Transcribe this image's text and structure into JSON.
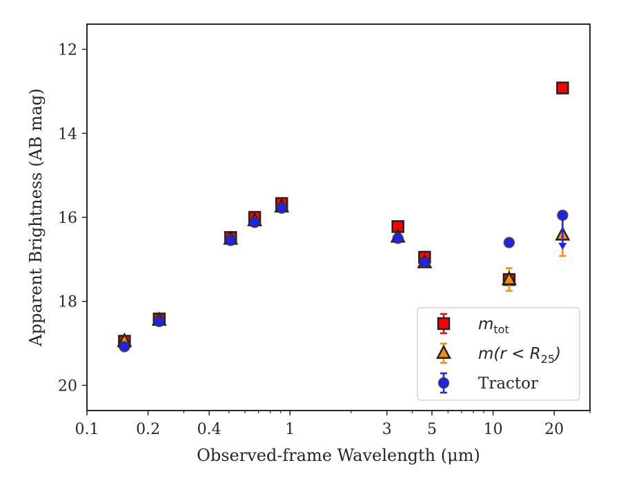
{
  "chart_data": {
    "type": "scatter",
    "xlabel": "Observed-frame Wavelength (μm)",
    "ylabel": "Apparent Brightness (AB mag)",
    "x_scale": "log",
    "xlim": [
      0.1,
      30
    ],
    "ylim": [
      20.6,
      11.4
    ],
    "y_inverted": true,
    "x_ticks": [
      0.1,
      0.2,
      0.4,
      1,
      3,
      5,
      10,
      20
    ],
    "x_tick_labels": [
      "0.1",
      "0.2",
      "0.4",
      "1",
      "3",
      "5",
      "10",
      "20"
    ],
    "y_ticks": [
      12,
      14,
      16,
      18,
      20
    ],
    "y_tick_labels": [
      "12",
      "14",
      "16",
      "18",
      "20"
    ],
    "grid": false,
    "legend_position": "lower-right",
    "series": [
      {
        "name": "m_tot",
        "legend": {
          "base": "m",
          "sub": "tot"
        },
        "marker": "square",
        "color": "#ff0000",
        "edge_color": "#222222",
        "points": [
          {
            "x": 0.153,
            "y": 18.95,
            "err": 0.06
          },
          {
            "x": 0.227,
            "y": 18.42,
            "err": 0.05
          },
          {
            "x": 0.51,
            "y": 16.48,
            "err": 0.06
          },
          {
            "x": 0.67,
            "y": 16.0,
            "err": 0.06
          },
          {
            "x": 0.91,
            "y": 15.67,
            "err": 0.06
          },
          {
            "x": 3.4,
            "y": 16.22,
            "err": 0.04
          },
          {
            "x": 4.6,
            "y": 16.95,
            "err": 0.04
          },
          {
            "x": 12.0,
            "y": 17.48,
            "err": 0.04
          },
          {
            "x": 22.0,
            "y": 12.92,
            "err": 0.04
          }
        ]
      },
      {
        "name": "m(r < R25)",
        "legend": {
          "base": "m(r < R",
          "sub": "25",
          "tail": ")"
        },
        "marker": "triangle",
        "color": "#ff8c00",
        "edge_color": "#222222",
        "points": [
          {
            "x": 0.153,
            "y": 18.95,
            "err": 0.06
          },
          {
            "x": 0.227,
            "y": 18.45,
            "err": 0.05
          },
          {
            "x": 0.51,
            "y": 16.52,
            "err": 0.05
          },
          {
            "x": 0.67,
            "y": 16.08,
            "err": 0.05
          },
          {
            "x": 0.91,
            "y": 15.75,
            "err": 0.05
          },
          {
            "x": 3.4,
            "y": 16.47,
            "err": 0.04
          },
          {
            "x": 4.6,
            "y": 17.08,
            "err": 0.04
          },
          {
            "x": 12.0,
            "y": 17.48,
            "err": 0.27
          },
          {
            "x": 22.0,
            "y": 16.42,
            "err": 0.5
          }
        ]
      },
      {
        "name": "Tractor",
        "marker": "circle",
        "color": "#1f1fff",
        "edge_color": "#333333",
        "points": [
          {
            "x": 0.153,
            "y": 19.08,
            "err": 0.05
          },
          {
            "x": 0.227,
            "y": 18.48,
            "err": 0.05
          },
          {
            "x": 0.51,
            "y": 16.55,
            "err": 0.05
          },
          {
            "x": 0.67,
            "y": 16.12,
            "err": 0.05
          },
          {
            "x": 0.91,
            "y": 15.78,
            "err": 0.05
          },
          {
            "x": 3.4,
            "y": 16.5,
            "err": 0.04
          },
          {
            "x": 4.6,
            "y": 17.07,
            "err": 0.04
          },
          {
            "x": 12.0,
            "y": 16.6,
            "err": 0.06
          },
          {
            "x": 22.0,
            "y": 15.95,
            "err": 0.06,
            "upper_limit": true
          }
        ]
      }
    ]
  }
}
